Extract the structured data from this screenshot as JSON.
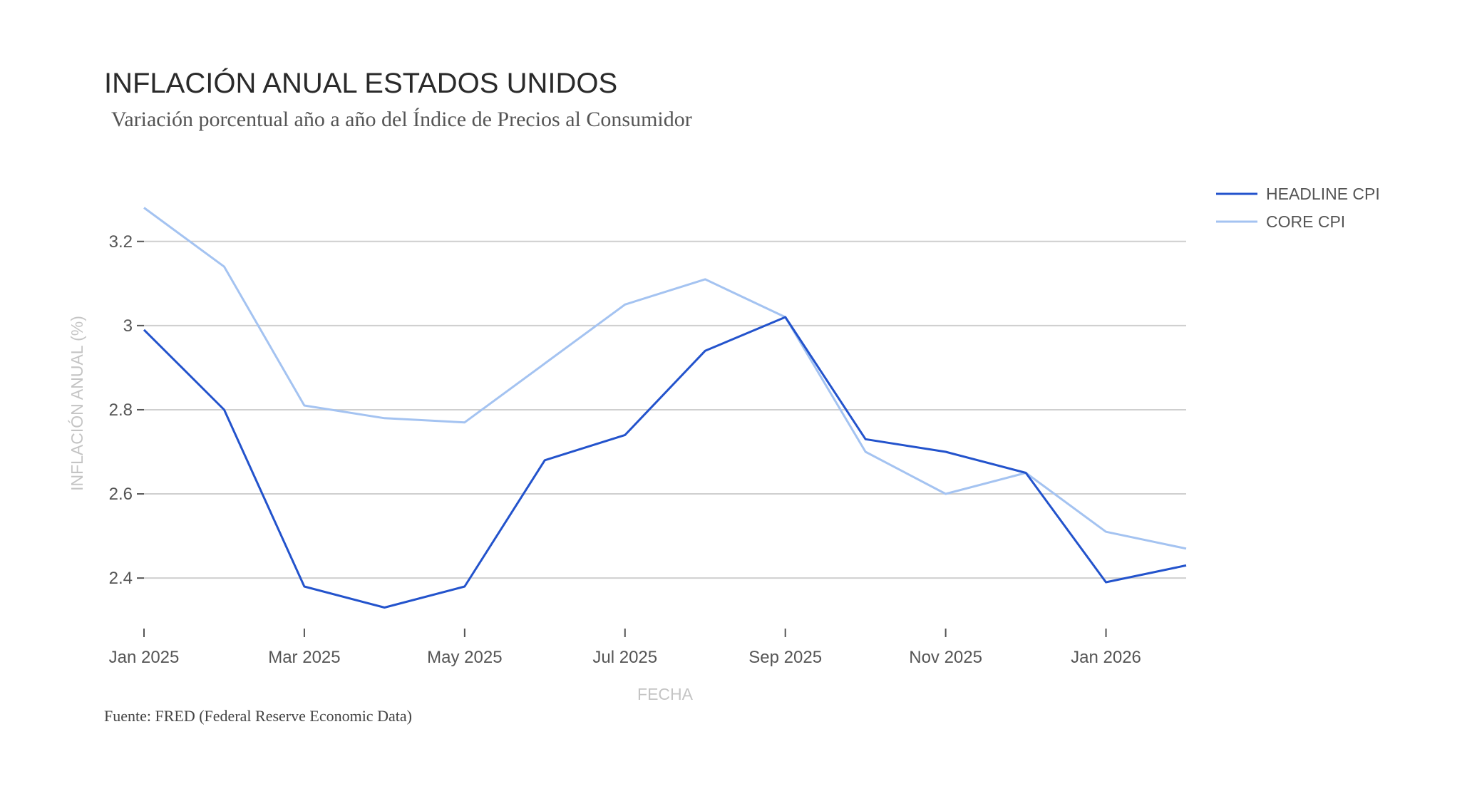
{
  "chart_data": {
    "type": "line",
    "title": "INFLACIÓN ANUAL ESTADOS UNIDOS",
    "subtitle": "Variación porcentual año a año del Índice de Precios al Consumidor",
    "xlabel": "FECHA",
    "ylabel": "INFLACIÓN ANUAL (%)",
    "source": "Fuente: FRED (Federal Reserve Economic Data)",
    "x": [
      "2025-01",
      "2025-02",
      "2025-03",
      "2025-04",
      "2025-05",
      "2025-06",
      "2025-07",
      "2025-08",
      "2025-09",
      "2025-10",
      "2025-11",
      "2025-12",
      "2026-01",
      "2026-02"
    ],
    "x_ticks": [
      {
        "value": "2025-01",
        "label": "Jan 2025"
      },
      {
        "value": "2025-03",
        "label": "Mar 2025"
      },
      {
        "value": "2025-05",
        "label": "May 2025"
      },
      {
        "value": "2025-07",
        "label": "Jul 2025"
      },
      {
        "value": "2025-09",
        "label": "Sep 2025"
      },
      {
        "value": "2025-11",
        "label": "Nov 2025"
      },
      {
        "value": "2026-01",
        "label": "Jan 2026"
      }
    ],
    "y_ticks": [
      {
        "value": 2.4,
        "label": "2.4"
      },
      {
        "value": 2.6,
        "label": "2.6"
      },
      {
        "value": 2.8,
        "label": "2.8"
      },
      {
        "value": 3.0,
        "label": "3"
      },
      {
        "value": 3.2,
        "label": "3.2"
      }
    ],
    "ylim": [
      2.28,
      3.33
    ],
    "grid": "horizontal",
    "legend_position": "top-right",
    "series": [
      {
        "name": "HEADLINE CPI",
        "color": "#2353cc",
        "values": [
          2.99,
          2.8,
          2.38,
          2.33,
          2.38,
          2.68,
          2.74,
          2.94,
          3.02,
          2.73,
          2.7,
          2.65,
          2.39,
          2.43
        ]
      },
      {
        "name": "CORE CPI",
        "color": "#a4c3f1",
        "values": [
          3.28,
          3.14,
          2.81,
          2.78,
          2.77,
          2.91,
          3.05,
          3.11,
          3.02,
          2.7,
          2.6,
          2.65,
          2.51,
          2.47
        ]
      }
    ]
  }
}
